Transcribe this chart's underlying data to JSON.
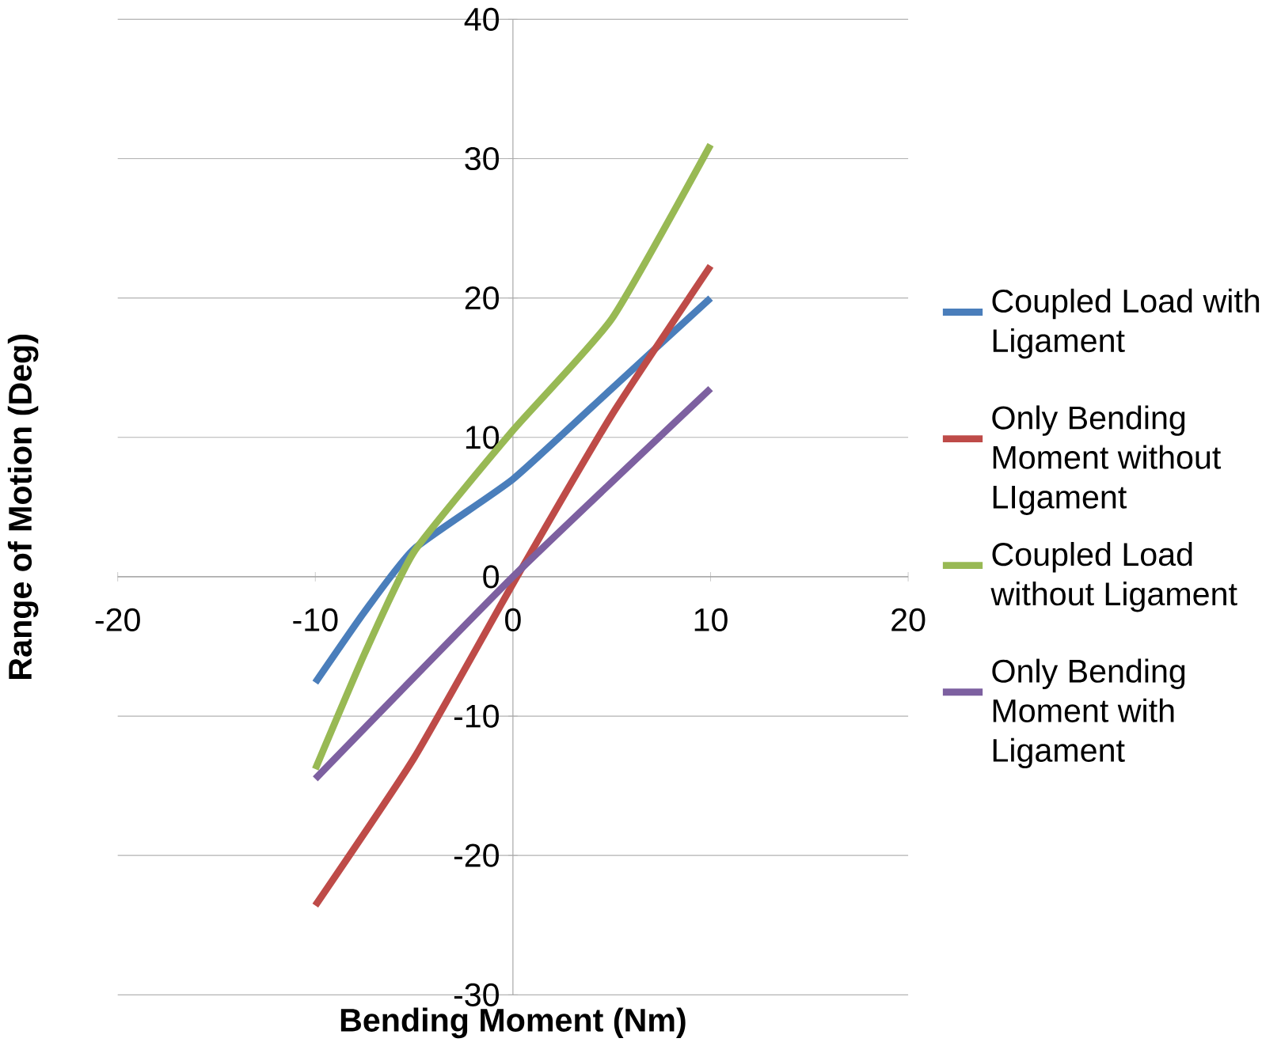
{
  "chart_data": {
    "type": "line",
    "xlabel": "Bending Moment (Nm)",
    "ylabel": "Range of Motion (Deg)",
    "xlim": [
      -20,
      20
    ],
    "ylim": [
      -30,
      40
    ],
    "xticks": [
      -20,
      -10,
      0,
      10,
      20
    ],
    "yticks": [
      -30,
      -20,
      -10,
      0,
      10,
      20,
      30,
      40
    ],
    "grid": "y",
    "legend": "right",
    "marker": "none",
    "line_style": "solid",
    "series": [
      {
        "name": "Coupled Load with Ligament",
        "color": "#4a7ebb",
        "x": [
          -10,
          -7.5,
          -5,
          0,
          5,
          10
        ],
        "values": [
          -7.6,
          -2.5,
          2,
          7,
          13.5,
          20
        ]
      },
      {
        "name": "Only Bending Moment without LIgament",
        "color": "#be4b48",
        "x": [
          -10,
          -5,
          0,
          5,
          10
        ],
        "values": [
          -23.6,
          -13,
          -0.5,
          11.6,
          22.3
        ]
      },
      {
        "name": "Coupled Load without Ligament",
        "color": "#98b954",
        "x": [
          -10,
          -7.5,
          -5,
          0,
          5,
          10
        ],
        "values": [
          -13.8,
          -5.5,
          1.8,
          10.5,
          18.5,
          31
        ]
      },
      {
        "name": "Only Bending Moment with Ligament",
        "color": "#7d60a0",
        "x": [
          -10,
          0,
          10
        ],
        "values": [
          -14.5,
          0,
          13.5
        ]
      }
    ]
  }
}
